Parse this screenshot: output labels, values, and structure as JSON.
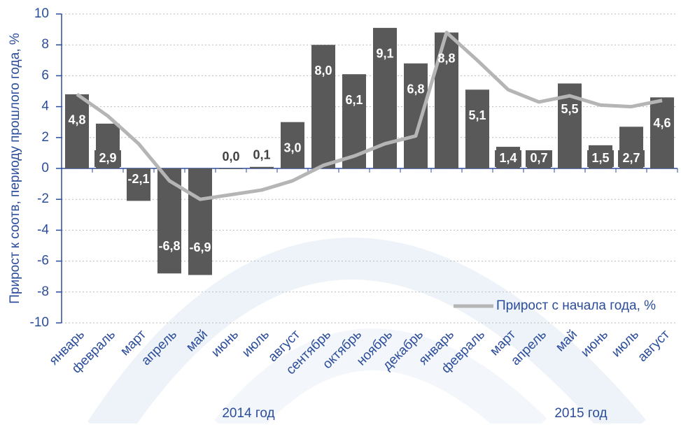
{
  "chart_data": {
    "type": "bar",
    "y_axis_label": "Прирост к соотв, периоду прошлого года, %",
    "categories": [
      "январь",
      "февраль",
      "март",
      "апрель",
      "май",
      "июнь",
      "июль",
      "август",
      "сентябрь",
      "октябрь",
      "ноябрь",
      "декабрь",
      "январь",
      "февраль",
      "март",
      "апрель",
      "май",
      "июнь",
      "июль",
      "август"
    ],
    "group_labels": [
      "2014 год",
      "2015 год"
    ],
    "series": [
      {
        "color": "#595959",
        "values": [
          4.8,
          2.9,
          -2.1,
          -6.8,
          -6.9,
          0.0,
          0.1,
          3.0,
          8.0,
          6.1,
          9.1,
          6.8,
          8.8,
          5.1,
          1.4,
          0.7,
          5.5,
          1.5,
          2.7,
          4.6
        ],
        "value_labels": [
          "4,8",
          "2,9",
          "-2,1",
          "-6,8",
          "-6,9",
          "0,0",
          "0,1",
          "3,0",
          "8,0",
          "6,1",
          "9,1",
          "6,8",
          "8,8",
          "5,1",
          "1,4",
          "0,7",
          "5,5",
          "1,5",
          "2,7",
          "4,6"
        ]
      },
      {
        "name": "Прирост с начала года, %",
        "type": "line",
        "color": "#b5b5b5",
        "values": [
          4.8,
          3.4,
          1.6,
          -0.8,
          -2.0,
          -1.7,
          -1.4,
          -0.8,
          0.2,
          0.8,
          1.6,
          2.1,
          8.8,
          7.0,
          5.1,
          4.3,
          4.7,
          4.1,
          4.0,
          4.4
        ]
      }
    ],
    "ylim": [
      -10,
      10
    ],
    "yticks": [
      -10,
      -8,
      -6,
      -4,
      -2,
      0,
      2,
      4,
      6,
      8,
      10
    ],
    "grid": true,
    "legend": "lower right"
  }
}
